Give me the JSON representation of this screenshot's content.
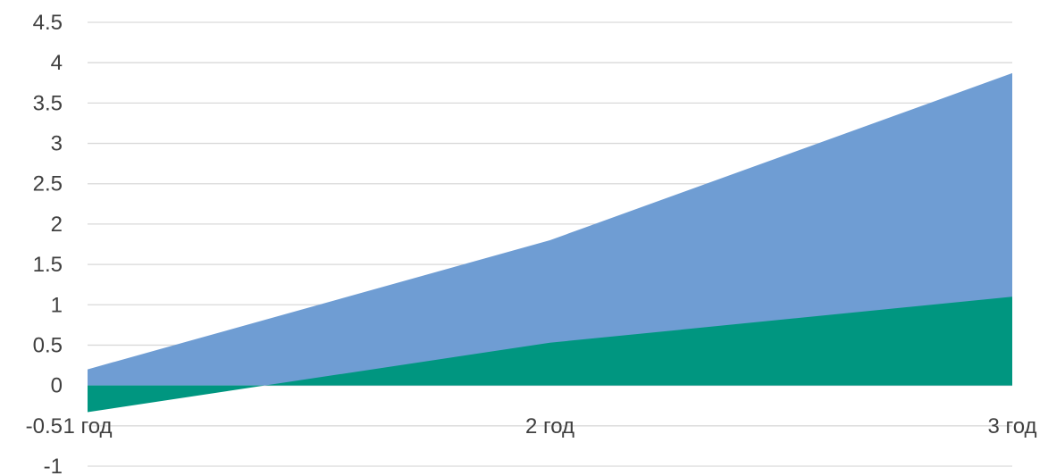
{
  "chart_data": {
    "type": "area",
    "categories": [
      "1 год",
      "2 год",
      "3 год"
    ],
    "series": [
      {
        "values": [
          0.2,
          1.8,
          3.87
        ],
        "color": "#6f9dd3"
      },
      {
        "values": [
          -0.33,
          0.53,
          1.1
        ],
        "color": "#009680"
      }
    ],
    "ylim": [
      -1,
      4.5
    ],
    "y_ticks": [
      "4.5",
      "4",
      "3.5",
      "3",
      "2.5",
      "2",
      "1.5",
      "1",
      "0.5",
      "0",
      "-0.5",
      "-1"
    ],
    "grid": true,
    "legend": "none",
    "title": "",
    "xlabel": "",
    "ylabel": ""
  }
}
